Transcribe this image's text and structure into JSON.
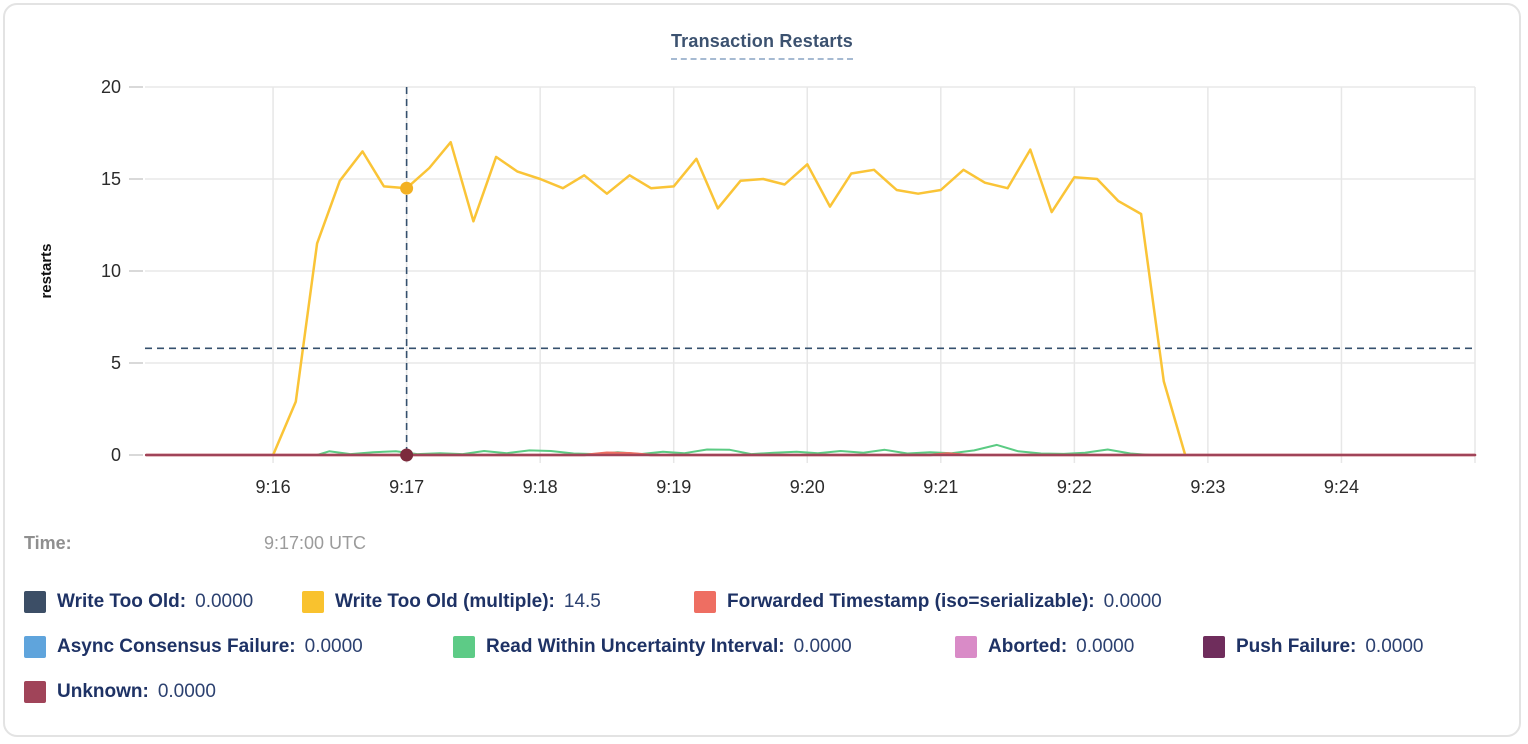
{
  "card": {
    "title": "Transaction Restarts"
  },
  "time": {
    "label": "Time:",
    "value": "9:17:00 UTC"
  },
  "legend": [
    {
      "label": "Write Too Old:",
      "value": "0.0000",
      "color": "#3c4e66"
    },
    {
      "label": "Write Too Old (multiple):",
      "value": "14.5",
      "color": "#f9c22e"
    },
    {
      "label": "Forwarded Timestamp (iso=serializable):",
      "value": "0.0000",
      "color": "#ee6e62"
    },
    {
      "label": "Async Consensus Failure:",
      "value": "0.0000",
      "color": "#5fa4dc"
    },
    {
      "label": "Read Within Uncertainty Interval:",
      "value": "0.0000",
      "color": "#5dcb86"
    },
    {
      "label": "Aborted:",
      "value": "0.0000",
      "color": "#d98bc7"
    },
    {
      "label": "Push Failure:",
      "value": "0.0000",
      "color": "#6f2d5c"
    },
    {
      "label": "Unknown:",
      "value": "0.0000",
      "color": "#a04459"
    }
  ],
  "chart_data": {
    "type": "line",
    "title": "Transaction Restarts",
    "xlabel": "",
    "ylabel": "restarts",
    "ylim": [
      0,
      20
    ],
    "y_ticks": [
      0,
      5,
      10,
      15,
      20
    ],
    "x_domain": [
      15.041,
      25.0
    ],
    "x_ticks": [
      {
        "t": 16,
        "label": "9:16"
      },
      {
        "t": 17,
        "label": "9:17"
      },
      {
        "t": 18,
        "label": "9:18"
      },
      {
        "t": 19,
        "label": "9:19"
      },
      {
        "t": 20,
        "label": "9:20"
      },
      {
        "t": 21,
        "label": "9:21"
      },
      {
        "t": 22,
        "label": "9:22"
      },
      {
        "t": 23,
        "label": "9:23"
      },
      {
        "t": 24,
        "label": "9:24"
      }
    ],
    "x_grid_extra": [
      25
    ],
    "grid": true,
    "legend_position": "bottom",
    "crosshair": {
      "t": 17.0,
      "y_value": 5.8,
      "highlighted_series": "Write Too Old (multiple)",
      "highlighted_value": 14.5,
      "dots": [
        {
          "t": 17.0,
          "v": 14.5,
          "color": "#f3b123"
        },
        {
          "t": 17.0,
          "v": 0,
          "color": "#7c2b3c"
        }
      ]
    },
    "series": [
      {
        "name": "Read Within Uncertainty Interval",
        "color": "#5bcb83",
        "width": 2,
        "points": [
          [
            16.33,
            0
          ],
          [
            16.42,
            0.2
          ],
          [
            16.58,
            0.05
          ],
          [
            16.75,
            0.15
          ],
          [
            16.92,
            0.2
          ],
          [
            17.08,
            0.05
          ],
          [
            17.25,
            0.1
          ],
          [
            17.42,
            0.05
          ],
          [
            17.58,
            0.22
          ],
          [
            17.75,
            0.1
          ],
          [
            17.92,
            0.25
          ],
          [
            18.08,
            0.22
          ],
          [
            18.25,
            0.08
          ],
          [
            18.42,
            0.05
          ],
          [
            18.58,
            0.15
          ],
          [
            18.75,
            0.05
          ],
          [
            18.92,
            0.18
          ],
          [
            19.08,
            0.1
          ],
          [
            19.25,
            0.3
          ],
          [
            19.42,
            0.28
          ],
          [
            19.58,
            0.05
          ],
          [
            19.75,
            0.12
          ],
          [
            19.92,
            0.18
          ],
          [
            20.08,
            0.1
          ],
          [
            20.25,
            0.22
          ],
          [
            20.42,
            0.12
          ],
          [
            20.58,
            0.28
          ],
          [
            20.75,
            0.08
          ],
          [
            20.92,
            0.15
          ],
          [
            21.08,
            0.1
          ],
          [
            21.25,
            0.25
          ],
          [
            21.42,
            0.55
          ],
          [
            21.58,
            0.2
          ],
          [
            21.75,
            0.08
          ],
          [
            21.92,
            0.06
          ],
          [
            22.08,
            0.12
          ],
          [
            22.25,
            0.3
          ],
          [
            22.42,
            0.08
          ],
          [
            22.58,
            0
          ]
        ]
      },
      {
        "name": "Forwarded Timestamp (iso=serializable)",
        "color": "#ee6e62",
        "width": 2.5,
        "points": [
          [
            15.05,
            0
          ],
          [
            18.33,
            0
          ],
          [
            18.5,
            0.12
          ],
          [
            18.67,
            0.1
          ],
          [
            18.83,
            0
          ],
          [
            20.92,
            0
          ],
          [
            21.05,
            0.08
          ],
          [
            21.2,
            0
          ],
          [
            25.0,
            0
          ]
        ]
      },
      {
        "name": "Write Too Old (multiple)",
        "color": "#fac437",
        "width": 2.5,
        "points": [
          [
            16.0,
            0
          ],
          [
            16.17,
            2.9
          ],
          [
            16.33,
            11.5
          ],
          [
            16.5,
            14.9
          ],
          [
            16.67,
            16.5
          ],
          [
            16.83,
            14.6
          ],
          [
            17.0,
            14.5
          ],
          [
            17.17,
            15.6
          ],
          [
            17.33,
            17.0
          ],
          [
            17.5,
            12.7
          ],
          [
            17.67,
            16.2
          ],
          [
            17.83,
            15.4
          ],
          [
            18.0,
            15.0
          ],
          [
            18.17,
            14.5
          ],
          [
            18.33,
            15.2
          ],
          [
            18.5,
            14.2
          ],
          [
            18.67,
            15.2
          ],
          [
            18.83,
            14.5
          ],
          [
            19.0,
            14.6
          ],
          [
            19.17,
            16.1
          ],
          [
            19.33,
            13.4
          ],
          [
            19.5,
            14.9
          ],
          [
            19.67,
            15.0
          ],
          [
            19.83,
            14.7
          ],
          [
            20.0,
            15.8
          ],
          [
            20.17,
            13.5
          ],
          [
            20.33,
            15.3
          ],
          [
            20.5,
            15.5
          ],
          [
            20.67,
            14.4
          ],
          [
            20.83,
            14.2
          ],
          [
            21.0,
            14.4
          ],
          [
            21.17,
            15.5
          ],
          [
            21.33,
            14.8
          ],
          [
            21.5,
            14.5
          ],
          [
            21.67,
            16.6
          ],
          [
            21.83,
            13.2
          ],
          [
            22.0,
            15.1
          ],
          [
            22.17,
            15.0
          ],
          [
            22.33,
            13.8
          ],
          [
            22.5,
            13.1
          ],
          [
            22.67,
            4.0
          ],
          [
            22.83,
            0
          ]
        ]
      },
      {
        "name": "Unknown",
        "color": "#a04459",
        "width": 2.5,
        "points": [
          [
            15.05,
            0
          ],
          [
            25.0,
            0
          ]
        ]
      }
    ]
  }
}
